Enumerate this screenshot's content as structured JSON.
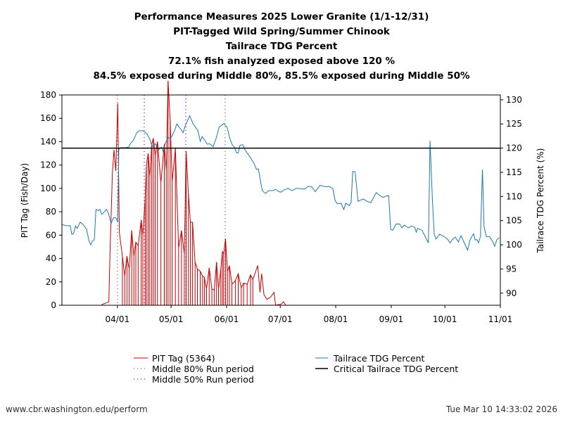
{
  "chart_data": {
    "type": "line",
    "title_lines": [
      "Performance Measures 2025 Lower Granite (1/1-12/31)",
      "PIT-Tagged Wild Spring/Summer Chinook",
      "Tailrace TDG Percent",
      "72.1% fish analyzed exposed above 120 %",
      "84.5% exposed during Middle 80%, 85.5% exposed during Middle 50%"
    ],
    "x_origin": "2025-03-01",
    "x_unit": "days since x_origin",
    "xlim": [
      0,
      245
    ],
    "x_ticks": [
      {
        "day": 31,
        "label": "04/01"
      },
      {
        "day": 61,
        "label": "05/01"
      },
      {
        "day": 92,
        "label": "06/01"
      },
      {
        "day": 122,
        "label": "07/01"
      },
      {
        "day": 153,
        "label": "08/01"
      },
      {
        "day": 184,
        "label": "09/01"
      },
      {
        "day": 214,
        "label": "10/01"
      },
      {
        "day": 245,
        "label": "11/01"
      }
    ],
    "ylabel": "PIT Tag (Fish/Day)",
    "ylim": [
      0,
      180
    ],
    "y_ticks": [
      0,
      20,
      40,
      60,
      80,
      100,
      120,
      140,
      160,
      180
    ],
    "y2label": "Tailrace TDG Percent (%)",
    "y2lim": [
      87.5,
      131
    ],
    "y2_ticks": [
      90,
      95,
      100,
      105,
      110,
      115,
      120,
      125,
      130
    ],
    "series": [
      {
        "name": "PIT Tag (5364)",
        "axis": "left",
        "color": "#cc0000",
        "points": [
          [
            22,
            0
          ],
          [
            22.9,
            1
          ],
          [
            24.9,
            2
          ],
          [
            26.2,
            3
          ],
          [
            26.9,
            47
          ],
          [
            28.2,
            113
          ],
          [
            29.1,
            133
          ],
          [
            30.1,
            115
          ],
          [
            31.2,
            173
          ],
          [
            32.1,
            62
          ],
          [
            33.8,
            42
          ],
          [
            35.1,
            25
          ],
          [
            36.3,
            42
          ],
          [
            37.6,
            31
          ],
          [
            39,
            64
          ],
          [
            40.2,
            42
          ],
          [
            41.3,
            54
          ],
          [
            42.6,
            51
          ],
          [
            44.3,
            73
          ],
          [
            45.2,
            60
          ],
          [
            46.5,
            91
          ],
          [
            47.2,
            120
          ],
          [
            48.2,
            130
          ],
          [
            49.1,
            110
          ],
          [
            50.2,
            138
          ],
          [
            51.1,
            143
          ],
          [
            52.1,
            128
          ],
          [
            53.4,
            140
          ],
          [
            55.3,
            105
          ],
          [
            57.2,
            138
          ],
          [
            58.3,
            115
          ],
          [
            59.3,
            192
          ],
          [
            60.5,
            158
          ],
          [
            61.6,
            106
          ],
          [
            63.4,
            134
          ],
          [
            65.2,
            49
          ],
          [
            66.8,
            64
          ],
          [
            68.4,
            44
          ],
          [
            69.4,
            132
          ],
          [
            70.7,
            95
          ],
          [
            71.8,
            71
          ],
          [
            73,
            71
          ],
          [
            74.4,
            37
          ],
          [
            75.7,
            31
          ],
          [
            77.3,
            29
          ],
          [
            78.6,
            25
          ],
          [
            79.6,
            24
          ],
          [
            80.8,
            14
          ],
          [
            82.3,
            32
          ],
          [
            83.8,
            14
          ],
          [
            85.1,
            13
          ],
          [
            86.4,
            37
          ],
          [
            87.5,
            14
          ],
          [
            88.8,
            31
          ],
          [
            89.7,
            46
          ],
          [
            90.4,
            44
          ],
          [
            91.4,
            57
          ],
          [
            92.5,
            29
          ],
          [
            93.6,
            34
          ],
          [
            95,
            18
          ],
          [
            96.9,
            21
          ],
          [
            98.5,
            27
          ],
          [
            100.2,
            15
          ],
          [
            101.5,
            19
          ],
          [
            103.5,
            18
          ],
          [
            105.4,
            26
          ],
          [
            106.7,
            22
          ],
          [
            109.4,
            34
          ],
          [
            110.7,
            11
          ],
          [
            111.6,
            27
          ],
          [
            112.9,
            9
          ],
          [
            114.6,
            5
          ],
          [
            116.6,
            7
          ],
          [
            118.5,
            11
          ],
          [
            119.4,
            0
          ],
          [
            122.5,
            1
          ],
          [
            123.8,
            3
          ],
          [
            125.1,
            0
          ]
        ]
      },
      {
        "name": "Tailrace TDG Percent",
        "axis": "right",
        "color": "#1f77b4",
        "points": [
          [
            0,
            104.2
          ],
          [
            2,
            104.0
          ],
          [
            3.3,
            103.9
          ],
          [
            4.6,
            104.0
          ],
          [
            5.5,
            102.2
          ],
          [
            6.5,
            102.3
          ],
          [
            7.6,
            103.9
          ],
          [
            8.5,
            103.4
          ],
          [
            10.2,
            104.7
          ],
          [
            11.8,
            104.2
          ],
          [
            13.8,
            103.2
          ],
          [
            15.1,
            100.8
          ],
          [
            16.1,
            100.0
          ],
          [
            17,
            100.8
          ],
          [
            18.1,
            101
          ],
          [
            19,
            107.3
          ],
          [
            20.3,
            107.1
          ],
          [
            21.2,
            107.3
          ],
          [
            22.3,
            106.3
          ],
          [
            23.6,
            106.8
          ],
          [
            24.9,
            107.3
          ],
          [
            25.9,
            106.6
          ],
          [
            27.5,
            104.4
          ],
          [
            28.8,
            105.6
          ],
          [
            30.1,
            105.6
          ],
          [
            31.2,
            104.8
          ],
          [
            31.8,
            119.7
          ],
          [
            32.7,
            120.1
          ],
          [
            35.4,
            120.1
          ],
          [
            37.3,
            120.2
          ],
          [
            38.6,
            121.1
          ],
          [
            39.9,
            121.6
          ],
          [
            41.7,
            123.1
          ],
          [
            43.2,
            123.6
          ],
          [
            45.2,
            123.6
          ],
          [
            47.2,
            123.1
          ],
          [
            49.1,
            121.9
          ],
          [
            50.4,
            120.4
          ],
          [
            52.4,
            120.9
          ],
          [
            53,
            120.1
          ],
          [
            54,
            119.7
          ],
          [
            55.7,
            120.2
          ],
          [
            56.6,
            119.2
          ],
          [
            57.6,
            120.8
          ],
          [
            59.2,
            122.3
          ],
          [
            60.5,
            121.9
          ],
          [
            61.6,
            122.6
          ],
          [
            62.9,
            123.6
          ],
          [
            64.2,
            125.0
          ],
          [
            65.5,
            124.3
          ],
          [
            66.8,
            123.8
          ],
          [
            67.7,
            123.2
          ],
          [
            68.8,
            124.5
          ],
          [
            71.4,
            126.7
          ],
          [
            73.3,
            125.0
          ],
          [
            74.7,
            124.3
          ],
          [
            76,
            123.6
          ],
          [
            77.3,
            121.4
          ],
          [
            78.3,
            122.4
          ],
          [
            79.9,
            121.6
          ],
          [
            81.2,
            120.8
          ],
          [
            82.5,
            120.9
          ],
          [
            84.5,
            120.3
          ],
          [
            86.4,
            122.3
          ],
          [
            87.8,
            124.3
          ],
          [
            90.4,
            125.1
          ],
          [
            92.3,
            124.3
          ],
          [
            93.6,
            122.3
          ],
          [
            95,
            120.8
          ],
          [
            96.3,
            120.2
          ],
          [
            97.6,
            119.0
          ],
          [
            98.5,
            119.0
          ],
          [
            99.5,
            120.6
          ],
          [
            101.1,
            120.7
          ],
          [
            102.2,
            119.7
          ],
          [
            103.5,
            119.0
          ],
          [
            105.4,
            118.0
          ],
          [
            107.4,
            116.8
          ],
          [
            108.7,
            115.6
          ],
          [
            109.8,
            115.7
          ],
          [
            111.1,
            112.9
          ],
          [
            112,
            111.2
          ],
          [
            113.9,
            110.6
          ],
          [
            115.3,
            111.2
          ],
          [
            117.9,
            111.2
          ],
          [
            119.4,
            111.5
          ],
          [
            121.2,
            111.0
          ],
          [
            122.5,
            110.9
          ],
          [
            123.8,
            111.3
          ],
          [
            126.5,
            111.7
          ],
          [
            128.5,
            111.2
          ],
          [
            131.1,
            111.7
          ],
          [
            135.7,
            111.5
          ],
          [
            137.6,
            112.1
          ],
          [
            139.6,
            112.0
          ],
          [
            141.6,
            111.0
          ],
          [
            144.2,
            112.3
          ],
          [
            147.5,
            112.0
          ],
          [
            149.4,
            112.1
          ],
          [
            151.4,
            111.6
          ],
          [
            152.7,
            109.1
          ],
          [
            154,
            108.5
          ],
          [
            156,
            108.6
          ],
          [
            157.5,
            107.3
          ],
          [
            158.6,
            108.6
          ],
          [
            160.6,
            108.1
          ],
          [
            161.6,
            108.7
          ],
          [
            162.5,
            115.2
          ],
          [
            163.8,
            115.1
          ],
          [
            165.5,
            109.0
          ],
          [
            168.4,
            109.5
          ],
          [
            170.4,
            109.0
          ],
          [
            172.6,
            108.7
          ],
          [
            175.6,
            110.8
          ],
          [
            177.6,
            110.2
          ],
          [
            179.5,
            109.8
          ],
          [
            181.2,
            110.1
          ],
          [
            182.6,
            110.2
          ],
          [
            183.7,
            103.2
          ],
          [
            184.8,
            103.0
          ],
          [
            186.7,
            104.3
          ],
          [
            188.7,
            104.3
          ],
          [
            190,
            103.5
          ],
          [
            191.3,
            104.1
          ],
          [
            193.6,
            103.5
          ],
          [
            195.3,
            103.9
          ],
          [
            197.2,
            103.6
          ],
          [
            198,
            102.6
          ],
          [
            198.8,
            103.4
          ],
          [
            201.2,
            103.0
          ],
          [
            203.8,
            101.1
          ],
          [
            204.8,
            100.4
          ],
          [
            205.7,
            121.5
          ],
          [
            207,
            109.5
          ],
          [
            208,
            102.3
          ],
          [
            209,
            101.2
          ],
          [
            211,
            102.2
          ],
          [
            213.6,
            101.7
          ],
          [
            215.6,
            101.1
          ],
          [
            216.9,
            100.4
          ],
          [
            218.2,
            101.1
          ],
          [
            219.8,
            101.6
          ],
          [
            221.5,
            100.6
          ],
          [
            223,
            101.9
          ],
          [
            226.7,
            98.9
          ],
          [
            228,
            101.0
          ],
          [
            230,
            102.3
          ],
          [
            230.9,
            101.0
          ],
          [
            231.9,
            101.1
          ],
          [
            232.8,
            100.4
          ],
          [
            233.9,
            101.8
          ],
          [
            235,
            115.6
          ],
          [
            235.9,
            103.7
          ],
          [
            237.2,
            101.7
          ],
          [
            238.9,
            101.7
          ],
          [
            240.5,
            100.8
          ],
          [
            241.8,
            99.7
          ],
          [
            243.1,
            101.1
          ],
          [
            244.4,
            101.5
          ]
        ]
      }
    ],
    "critical_tdg": {
      "name": "Critical Tailrace TDG Percent",
      "value": 120,
      "color": "#000000"
    },
    "middle_80": {
      "name": "Middle 80% Run period",
      "days": [
        31,
        91.2
      ],
      "color": "#666666"
    },
    "middle_50": {
      "name": "Middle 50% Run period",
      "days": [
        46,
        69.2
      ],
      "color": "#9900cc"
    },
    "legend_placement": "bottom",
    "grid": false
  },
  "footer": {
    "url": "www.cbr.washington.edu/perform",
    "timestamp": "Tue Mar 10 14:33:02 2026"
  }
}
